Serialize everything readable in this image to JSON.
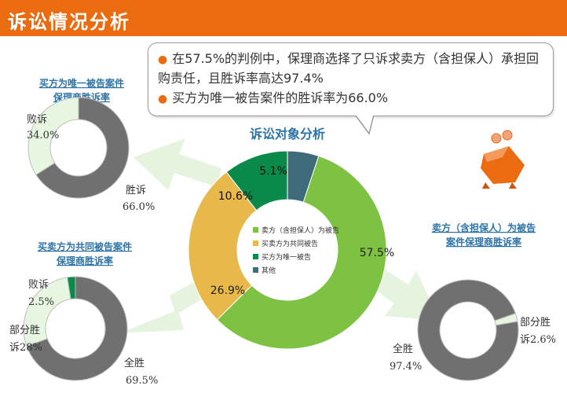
{
  "header": {
    "title": "诉讼情况分析"
  },
  "callout": {
    "bullets": [
      "在57.5%的判例中，保理商选择了只诉求卖方（含担保人）承担回购责任，且胜诉率高达97.4%",
      "买方为唯一被告案件的胜诉率为66.0%"
    ]
  },
  "colors": {
    "header": "#ea6b10",
    "green_light": "#7dc243",
    "gold": "#e8b94a",
    "green_dark": "#0a8a4a",
    "teal": "#3d6b7a",
    "gray": "#707070",
    "pale_green": "#e7f6e0",
    "title_blue": "#2d73a8"
  },
  "chart_data": [
    {
      "type": "pie",
      "title": "诉讼对象分析",
      "labels": [
        "卖方（含担保人）为被告",
        "买卖方为共同被告",
        "买方为唯一被告",
        "其他"
      ],
      "values": [
        57.5,
        26.9,
        10.6,
        5.1
      ],
      "value_labels": [
        "57.5%",
        "26.9%",
        "10.6%",
        "5.1%"
      ],
      "legend": "center",
      "donut": true
    },
    {
      "type": "pie",
      "title": "买方为唯一被告案件保理商胜诉率",
      "title_lines": [
        "买方为唯一被告案件",
        "保理商胜诉率"
      ],
      "labels": [
        "胜诉",
        "败诉"
      ],
      "values": [
        66.0,
        34.0
      ],
      "value_labels": [
        "66.0%",
        "34.0%"
      ],
      "donut": true
    },
    {
      "type": "pie",
      "title": "买卖方为共同被告案件保理商胜诉率",
      "title_lines": [
        "买卖方为共同被告案件",
        "保理商胜诉率"
      ],
      "labels": [
        "全胜",
        "部分胜诉",
        "败诉"
      ],
      "label_lines": [
        [
          "全胜"
        ],
        [
          "部分胜",
          "诉28%"
        ],
        [
          "败诉"
        ]
      ],
      "values": [
        69.5,
        28.0,
        2.5
      ],
      "value_labels": [
        "69.5%",
        "",
        "2.5%"
      ],
      "donut": true
    },
    {
      "type": "pie",
      "title": "卖方（含担保人）为被告案件保理商胜诉率",
      "title_lines": [
        "卖方（含担保人）为被告",
        "案件保理商胜诉率"
      ],
      "labels": [
        "全胜",
        "部分胜诉"
      ],
      "label_lines": [
        [
          "全胜"
        ],
        [
          "部分胜",
          "诉2.6%"
        ]
      ],
      "values": [
        97.4,
        2.6
      ],
      "value_labels": [
        "97.4%",
        ""
      ],
      "donut": true
    }
  ]
}
